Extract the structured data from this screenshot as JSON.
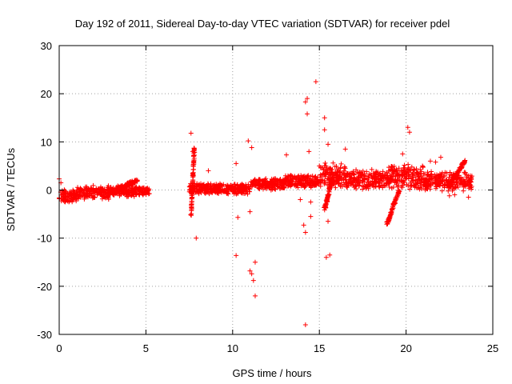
{
  "chart_data": {
    "type": "scatter",
    "title": "Day 192 of 2011, Sidereal Day-to-day VTEC variation (SDTVAR) for receiver pdel",
    "xlabel": "GPS time / hours",
    "ylabel": "SDTVAR / TECUs",
    "xlim": [
      0,
      25
    ],
    "ylim": [
      -30,
      30
    ],
    "xticks": [
      0,
      5,
      10,
      15,
      20,
      25
    ],
    "yticks": [
      -30,
      -20,
      -10,
      0,
      10,
      20,
      30
    ],
    "xtick_labels": [
      "0",
      "5",
      "10",
      "15",
      "20",
      "25"
    ],
    "ytick_labels": [
      "-30",
      "-20",
      "-10",
      "0",
      "10",
      "20",
      "30"
    ],
    "grid": true,
    "marker": "+",
    "color": "#ff0000",
    "series": [
      {
        "name": "SDTVAR",
        "dense_segments": [
          {
            "x": [
              0.0,
              1.0
            ],
            "y_center": -1.2,
            "y_spread": 1.6
          },
          {
            "x": [
              1.0,
              3.0
            ],
            "y_center": -0.5,
            "y_spread": 1.5
          },
          {
            "x": [
              3.0,
              4.5
            ],
            "y_center": -0.3,
            "y_spread": 1.3
          },
          {
            "x": [
              4.5,
              5.2
            ],
            "y_center": -0.2,
            "y_spread": 0.9
          },
          {
            "x": [
              7.5,
              9.0
            ],
            "y_center": 0.3,
            "y_spread": 1.2
          },
          {
            "x": [
              9.0,
              11.0
            ],
            "y_center": 0.2,
            "y_spread": 1.2
          },
          {
            "x": [
              11.0,
              13.0
            ],
            "y_center": 1.2,
            "y_spread": 1.3
          },
          {
            "x": [
              13.0,
              15.0
            ],
            "y_center": 1.8,
            "y_spread": 1.5
          },
          {
            "x": [
              15.0,
              16.5
            ],
            "y_center": 3.0,
            "y_spread": 2.8
          },
          {
            "x": [
              16.5,
              19.0
            ],
            "y_center": 2.2,
            "y_spread": 2.2
          },
          {
            "x": [
              19.0,
              21.0
            ],
            "y_center": 2.8,
            "y_spread": 2.8
          },
          {
            "x": [
              21.0,
              23.8
            ],
            "y_center": 1.8,
            "y_spread": 2.2
          }
        ],
        "ramps": [
          {
            "x": [
              3.3,
              4.5
            ],
            "y": [
              0.0,
              2.0
            ]
          },
          {
            "x": [
              15.3,
              15.8
            ],
            "y": [
              -4.0,
              3.0
            ]
          },
          {
            "x": [
              18.9,
              19.6
            ],
            "y": [
              -7.0,
              0.0
            ]
          },
          {
            "x": [
              22.5,
              23.4
            ],
            "y": [
              1.0,
              6.0
            ]
          },
          {
            "x": [
              7.6,
              7.8
            ],
            "y": [
              -5.0,
              9.0
            ]
          }
        ],
        "outliers": [
          [
            0.0,
            2.3
          ],
          [
            0.1,
            1.5
          ],
          [
            7.6,
            11.8
          ],
          [
            7.7,
            8.0
          ],
          [
            7.9,
            -10.0
          ],
          [
            8.2,
            0.5
          ],
          [
            8.6,
            4.0
          ],
          [
            10.2,
            5.5
          ],
          [
            10.2,
            -13.6
          ],
          [
            10.3,
            -5.7
          ],
          [
            10.9,
            10.2
          ],
          [
            11.0,
            -4.5
          ],
          [
            11.0,
            -16.8
          ],
          [
            11.1,
            -17.4
          ],
          [
            11.1,
            8.8
          ],
          [
            11.2,
            -18.8
          ],
          [
            11.3,
            -15.0
          ],
          [
            11.3,
            -22.0
          ],
          [
            13.1,
            7.3
          ],
          [
            13.9,
            -2.0
          ],
          [
            14.1,
            -7.3
          ],
          [
            14.2,
            -8.8
          ],
          [
            14.2,
            -28.0
          ],
          [
            14.2,
            18.3
          ],
          [
            14.3,
            19.0
          ],
          [
            14.3,
            15.8
          ],
          [
            14.4,
            8.0
          ],
          [
            14.5,
            -2.5
          ],
          [
            14.5,
            -5.5
          ],
          [
            14.8,
            22.5
          ],
          [
            15.0,
            5.0
          ],
          [
            15.3,
            15.0
          ],
          [
            15.3,
            12.5
          ],
          [
            15.4,
            -14.0
          ],
          [
            15.5,
            9.5
          ],
          [
            15.6,
            -13.5
          ],
          [
            15.6,
            4.5
          ],
          [
            15.5,
            -6.5
          ],
          [
            16.5,
            8.5
          ],
          [
            19.8,
            7.5
          ],
          [
            20.1,
            13.0
          ],
          [
            20.2,
            12.0
          ],
          [
            21.4,
            6.0
          ],
          [
            21.7,
            5.8
          ],
          [
            22.0,
            6.8
          ],
          [
            22.5,
            -1.2
          ],
          [
            22.8,
            -1.0
          ],
          [
            23.6,
            -1.5
          ]
        ]
      }
    ]
  }
}
